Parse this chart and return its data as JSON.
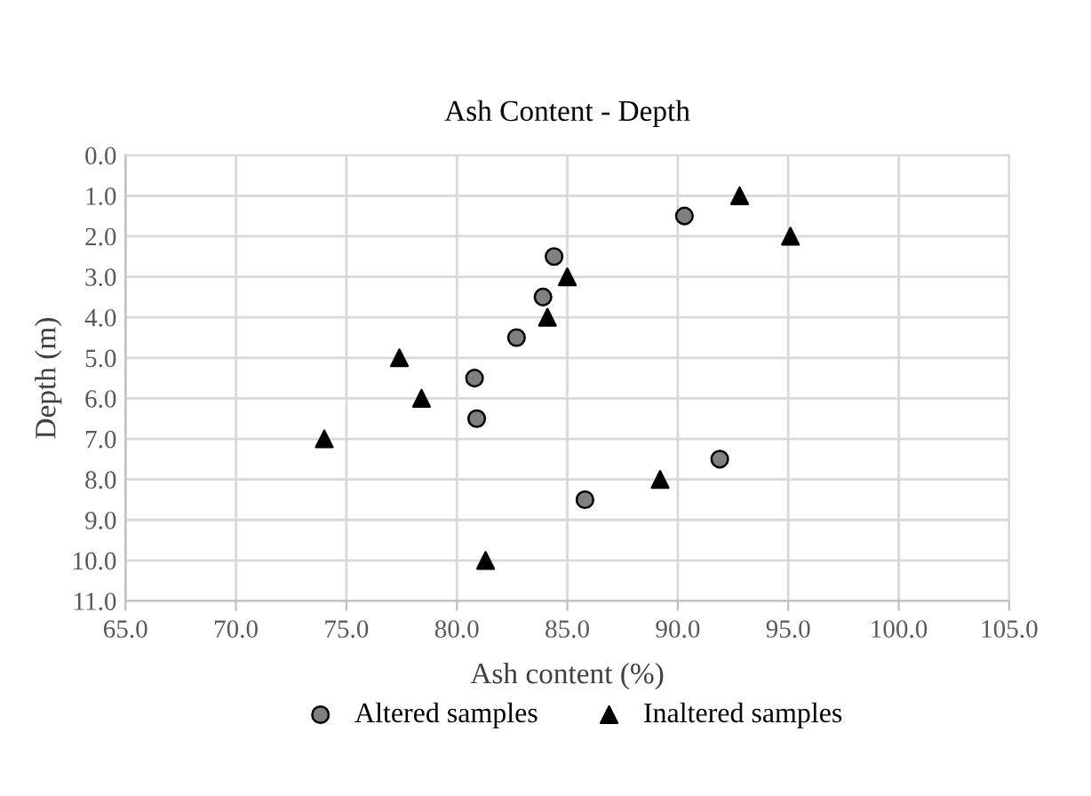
{
  "chart_data": {
    "type": "scatter",
    "title": "Ash Content - Depth",
    "xlabel": "Ash content (%)",
    "ylabel": "Depth (m)",
    "xlim": [
      65,
      105
    ],
    "xticks": [
      {
        "value": 65,
        "label": "65.0"
      },
      {
        "value": 70,
        "label": "70.0"
      },
      {
        "value": 75,
        "label": "75.0"
      },
      {
        "value": 80,
        "label": "80.0"
      },
      {
        "value": 85,
        "label": "85.0"
      },
      {
        "value": 90,
        "label": "90.0"
      },
      {
        "value": 95,
        "label": "95.0"
      },
      {
        "value": 100,
        "label": "100.0"
      },
      {
        "value": 105,
        "label": "105.0"
      }
    ],
    "ylim": [
      11,
      0
    ],
    "yticks": [
      {
        "value": 0,
        "label": "0.0"
      },
      {
        "value": 1,
        "label": "1.0"
      },
      {
        "value": 2,
        "label": "2.0"
      },
      {
        "value": 3,
        "label": "3.0"
      },
      {
        "value": 4,
        "label": "4.0"
      },
      {
        "value": 5,
        "label": "5.0"
      },
      {
        "value": 6,
        "label": "6.0"
      },
      {
        "value": 7,
        "label": "7.0"
      },
      {
        "value": 8,
        "label": "8.0"
      },
      {
        "value": 9,
        "label": "9.0"
      },
      {
        "value": 10,
        "label": "10.0"
      },
      {
        "value": 11,
        "label": "11.0"
      }
    ],
    "grid": true,
    "legend": "bottom",
    "series": [
      {
        "name": "Altered samples",
        "color": "#808080",
        "marker": "circle",
        "x": [
          90.3,
          84.4,
          83.9,
          82.7,
          80.8,
          80.9,
          91.9,
          85.8
        ],
        "values": [
          1.5,
          2.5,
          3.5,
          4.5,
          5.5,
          6.5,
          7.5,
          8.5
        ]
      },
      {
        "name": "Inaltered samples",
        "color": "#000000",
        "marker": "triangle",
        "x": [
          92.8,
          95.1,
          85.0,
          84.1,
          77.4,
          78.4,
          74.0,
          89.2,
          81.3
        ],
        "values": [
          1.0,
          2.0,
          3.0,
          4.0,
          5.0,
          6.0,
          7.0,
          8.0,
          10.0
        ]
      }
    ]
  }
}
